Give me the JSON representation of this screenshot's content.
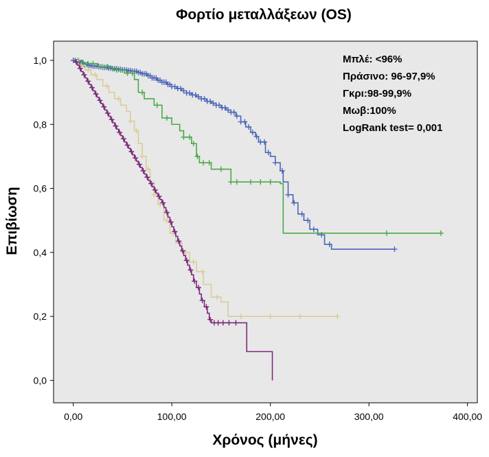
{
  "chart_data": {
    "type": "line",
    "subtype": "kaplan-meier",
    "title": "Φορτίο μεταλλάξεων (OS)",
    "xlabel": "Χρόνος (μήνες)",
    "ylabel": "Επιβίωση",
    "xlim": [
      -20,
      410
    ],
    "ylim": [
      -0.07,
      1.06
    ],
    "x_ticks": [
      0,
      100,
      200,
      300,
      400
    ],
    "x_tick_labels": [
      "0,00",
      "100,00",
      "200,00",
      "300,00",
      "400,00"
    ],
    "y_ticks": [
      0,
      0.2,
      0.4,
      0.6,
      0.8,
      1.0
    ],
    "y_tick_labels": [
      "0,0",
      "0,2",
      "0,4",
      "0,6",
      "0,8",
      "1,0"
    ],
    "grid": false,
    "plot_background": "#e8e8e8",
    "legend_lines": [
      "Μπλέ: <96%",
      "Πράσινο:  96-97,9%",
      "Γκρι:98-99,9%",
      "Μωβ:100%",
      "LogRank  test= 0,001"
    ],
    "legend_position": "top-right",
    "series": [
      {
        "color": "#4a66b8",
        "steps": [
          [
            0,
            1.0
          ],
          [
            3,
            0.995
          ],
          [
            6,
            0.99
          ],
          [
            10,
            0.987
          ],
          [
            15,
            0.984
          ],
          [
            20,
            0.982
          ],
          [
            25,
            0.98
          ],
          [
            30,
            0.978
          ],
          [
            35,
            0.976
          ],
          [
            40,
            0.974
          ],
          [
            45,
            0.972
          ],
          [
            50,
            0.97
          ],
          [
            55,
            0.968
          ],
          [
            60,
            0.966
          ],
          [
            65,
            0.962
          ],
          [
            70,
            0.958
          ],
          [
            75,
            0.952
          ],
          [
            80,
            0.945
          ],
          [
            85,
            0.938
          ],
          [
            90,
            0.932
          ],
          [
            95,
            0.925
          ],
          [
            100,
            0.918
          ],
          [
            105,
            0.912
          ],
          [
            110,
            0.905
          ],
          [
            115,
            0.898
          ],
          [
            120,
            0.892
          ],
          [
            125,
            0.886
          ],
          [
            130,
            0.88
          ],
          [
            135,
            0.872
          ],
          [
            140,
            0.866
          ],
          [
            145,
            0.86
          ],
          [
            150,
            0.852
          ],
          [
            155,
            0.845
          ],
          [
            160,
            0.838
          ],
          [
            165,
            0.826
          ],
          [
            170,
            0.808
          ],
          [
            175,
            0.792
          ],
          [
            180,
            0.775
          ],
          [
            185,
            0.762
          ],
          [
            188,
            0.745
          ],
          [
            195,
            0.712
          ],
          [
            200,
            0.7
          ],
          [
            205,
            0.68
          ],
          [
            210,
            0.655
          ],
          [
            213,
            0.62
          ],
          [
            218,
            0.58
          ],
          [
            223,
            0.555
          ],
          [
            228,
            0.52
          ],
          [
            234,
            0.5
          ],
          [
            240,
            0.472
          ],
          [
            248,
            0.455
          ],
          [
            255,
            0.425
          ],
          [
            262,
            0.41
          ]
        ],
        "end_x": 326,
        "censor_x": [
          0,
          2,
          4,
          5,
          7,
          8,
          9,
          11,
          12,
          14,
          16,
          18,
          20,
          22,
          24,
          26,
          28,
          30,
          32,
          34,
          36,
          38,
          40,
          42,
          44,
          46,
          48,
          50,
          52,
          54,
          56,
          58,
          60,
          62,
          64,
          66,
          68,
          70,
          72,
          74,
          76,
          78,
          80,
          82,
          84,
          86,
          88,
          90,
          92,
          94,
          96,
          98,
          100,
          103,
          106,
          109,
          112,
          115,
          118,
          121,
          124,
          127,
          130,
          133,
          136,
          139,
          142,
          145,
          148,
          151,
          154,
          157,
          160,
          163,
          166,
          170,
          174,
          178,
          182,
          186,
          190,
          194,
          198,
          205,
          212,
          218,
          224,
          232,
          238,
          244,
          252,
          260,
          326
        ]
      },
      {
        "color": "#4aa84a",
        "steps": [
          [
            0,
            1.0
          ],
          [
            10,
            0.99
          ],
          [
            25,
            0.98
          ],
          [
            40,
            0.97
          ],
          [
            52,
            0.96
          ],
          [
            62,
            0.94
          ],
          [
            66,
            0.9
          ],
          [
            72,
            0.88
          ],
          [
            82,
            0.86
          ],
          [
            90,
            0.82
          ],
          [
            100,
            0.8
          ],
          [
            108,
            0.78
          ],
          [
            112,
            0.76
          ],
          [
            120,
            0.74
          ],
          [
            125,
            0.7
          ],
          [
            128,
            0.68
          ],
          [
            140,
            0.66
          ],
          [
            160,
            0.62
          ],
          [
            210,
            0.615
          ],
          [
            213,
            0.46
          ]
        ],
        "end_x": 373,
        "censor_x": [
          5,
          15,
          20,
          30,
          35,
          44,
          48,
          55,
          60,
          70,
          85,
          95,
          112,
          118,
          122,
          126,
          132,
          138,
          150,
          160,
          166,
          180,
          190,
          200,
          318,
          373
        ]
      },
      {
        "color": "#d9cc98",
        "steps": [
          [
            0,
            1.0
          ],
          [
            5,
            0.985
          ],
          [
            12,
            0.97
          ],
          [
            18,
            0.955
          ],
          [
            24,
            0.94
          ],
          [
            30,
            0.92
          ],
          [
            36,
            0.9
          ],
          [
            42,
            0.88
          ],
          [
            48,
            0.86
          ],
          [
            54,
            0.84
          ],
          [
            58,
            0.81
          ],
          [
            62,
            0.78
          ],
          [
            66,
            0.74
          ],
          [
            70,
            0.7
          ],
          [
            74,
            0.66
          ],
          [
            78,
            0.62
          ],
          [
            82,
            0.58
          ],
          [
            86,
            0.55
          ],
          [
            92,
            0.5
          ],
          [
            98,
            0.46
          ],
          [
            104,
            0.43
          ],
          [
            110,
            0.4
          ],
          [
            118,
            0.37
          ],
          [
            125,
            0.34
          ],
          [
            132,
            0.3
          ],
          [
            140,
            0.26
          ],
          [
            150,
            0.245
          ],
          [
            157,
            0.2
          ]
        ],
        "end_x": 268,
        "censor_x": [
          8,
          15,
          22,
          34,
          46,
          58,
          64,
          70,
          76,
          82,
          88,
          95,
          101,
          108,
          114,
          122,
          131,
          146,
          170,
          200,
          230,
          268
        ]
      },
      {
        "color": "#7b2a7b",
        "steps": [
          [
            0,
            1.0
          ],
          [
            2,
            0.995
          ],
          [
            4,
            0.985
          ],
          [
            6,
            0.975
          ],
          [
            8,
            0.965
          ],
          [
            10,
            0.955
          ],
          [
            12,
            0.945
          ],
          [
            14,
            0.935
          ],
          [
            16,
            0.925
          ],
          [
            18,
            0.915
          ],
          [
            20,
            0.905
          ],
          [
            22,
            0.895
          ],
          [
            24,
            0.885
          ],
          [
            26,
            0.875
          ],
          [
            28,
            0.865
          ],
          [
            30,
            0.855
          ],
          [
            32,
            0.845
          ],
          [
            34,
            0.835
          ],
          [
            36,
            0.825
          ],
          [
            38,
            0.815
          ],
          [
            40,
            0.805
          ],
          [
            42,
            0.795
          ],
          [
            44,
            0.785
          ],
          [
            46,
            0.775
          ],
          [
            48,
            0.765
          ],
          [
            50,
            0.755
          ],
          [
            52,
            0.745
          ],
          [
            54,
            0.735
          ],
          [
            56,
            0.725
          ],
          [
            58,
            0.715
          ],
          [
            60,
            0.705
          ],
          [
            62,
            0.695
          ],
          [
            64,
            0.685
          ],
          [
            66,
            0.675
          ],
          [
            68,
            0.665
          ],
          [
            70,
            0.655
          ],
          [
            72,
            0.645
          ],
          [
            74,
            0.635
          ],
          [
            76,
            0.625
          ],
          [
            78,
            0.615
          ],
          [
            80,
            0.605
          ],
          [
            82,
            0.595
          ],
          [
            84,
            0.585
          ],
          [
            86,
            0.575
          ],
          [
            88,
            0.565
          ],
          [
            90,
            0.555
          ],
          [
            92,
            0.54
          ],
          [
            94,
            0.525
          ],
          [
            96,
            0.51
          ],
          [
            98,
            0.495
          ],
          [
            100,
            0.48
          ],
          [
            102,
            0.465
          ],
          [
            104,
            0.45
          ],
          [
            106,
            0.435
          ],
          [
            108,
            0.42
          ],
          [
            110,
            0.405
          ],
          [
            112,
            0.39
          ],
          [
            114,
            0.375
          ],
          [
            116,
            0.36
          ],
          [
            118,
            0.345
          ],
          [
            120,
            0.33
          ],
          [
            122,
            0.31
          ],
          [
            125,
            0.29
          ],
          [
            128,
            0.27
          ],
          [
            130,
            0.25
          ],
          [
            133,
            0.23
          ],
          [
            136,
            0.21
          ],
          [
            138,
            0.19
          ],
          [
            140,
            0.18
          ],
          [
            176,
            0.09
          ],
          [
            202,
            0.0
          ]
        ],
        "censor_x": [
          3,
          7,
          11,
          15,
          19,
          23,
          27,
          31,
          35,
          39,
          43,
          47,
          51,
          55,
          59,
          63,
          67,
          71,
          75,
          79,
          83,
          87,
          91,
          95,
          99,
          103,
          107,
          111,
          115,
          119,
          123,
          127,
          131,
          135,
          139,
          143,
          147,
          152,
          158,
          165
        ]
      }
    ]
  }
}
